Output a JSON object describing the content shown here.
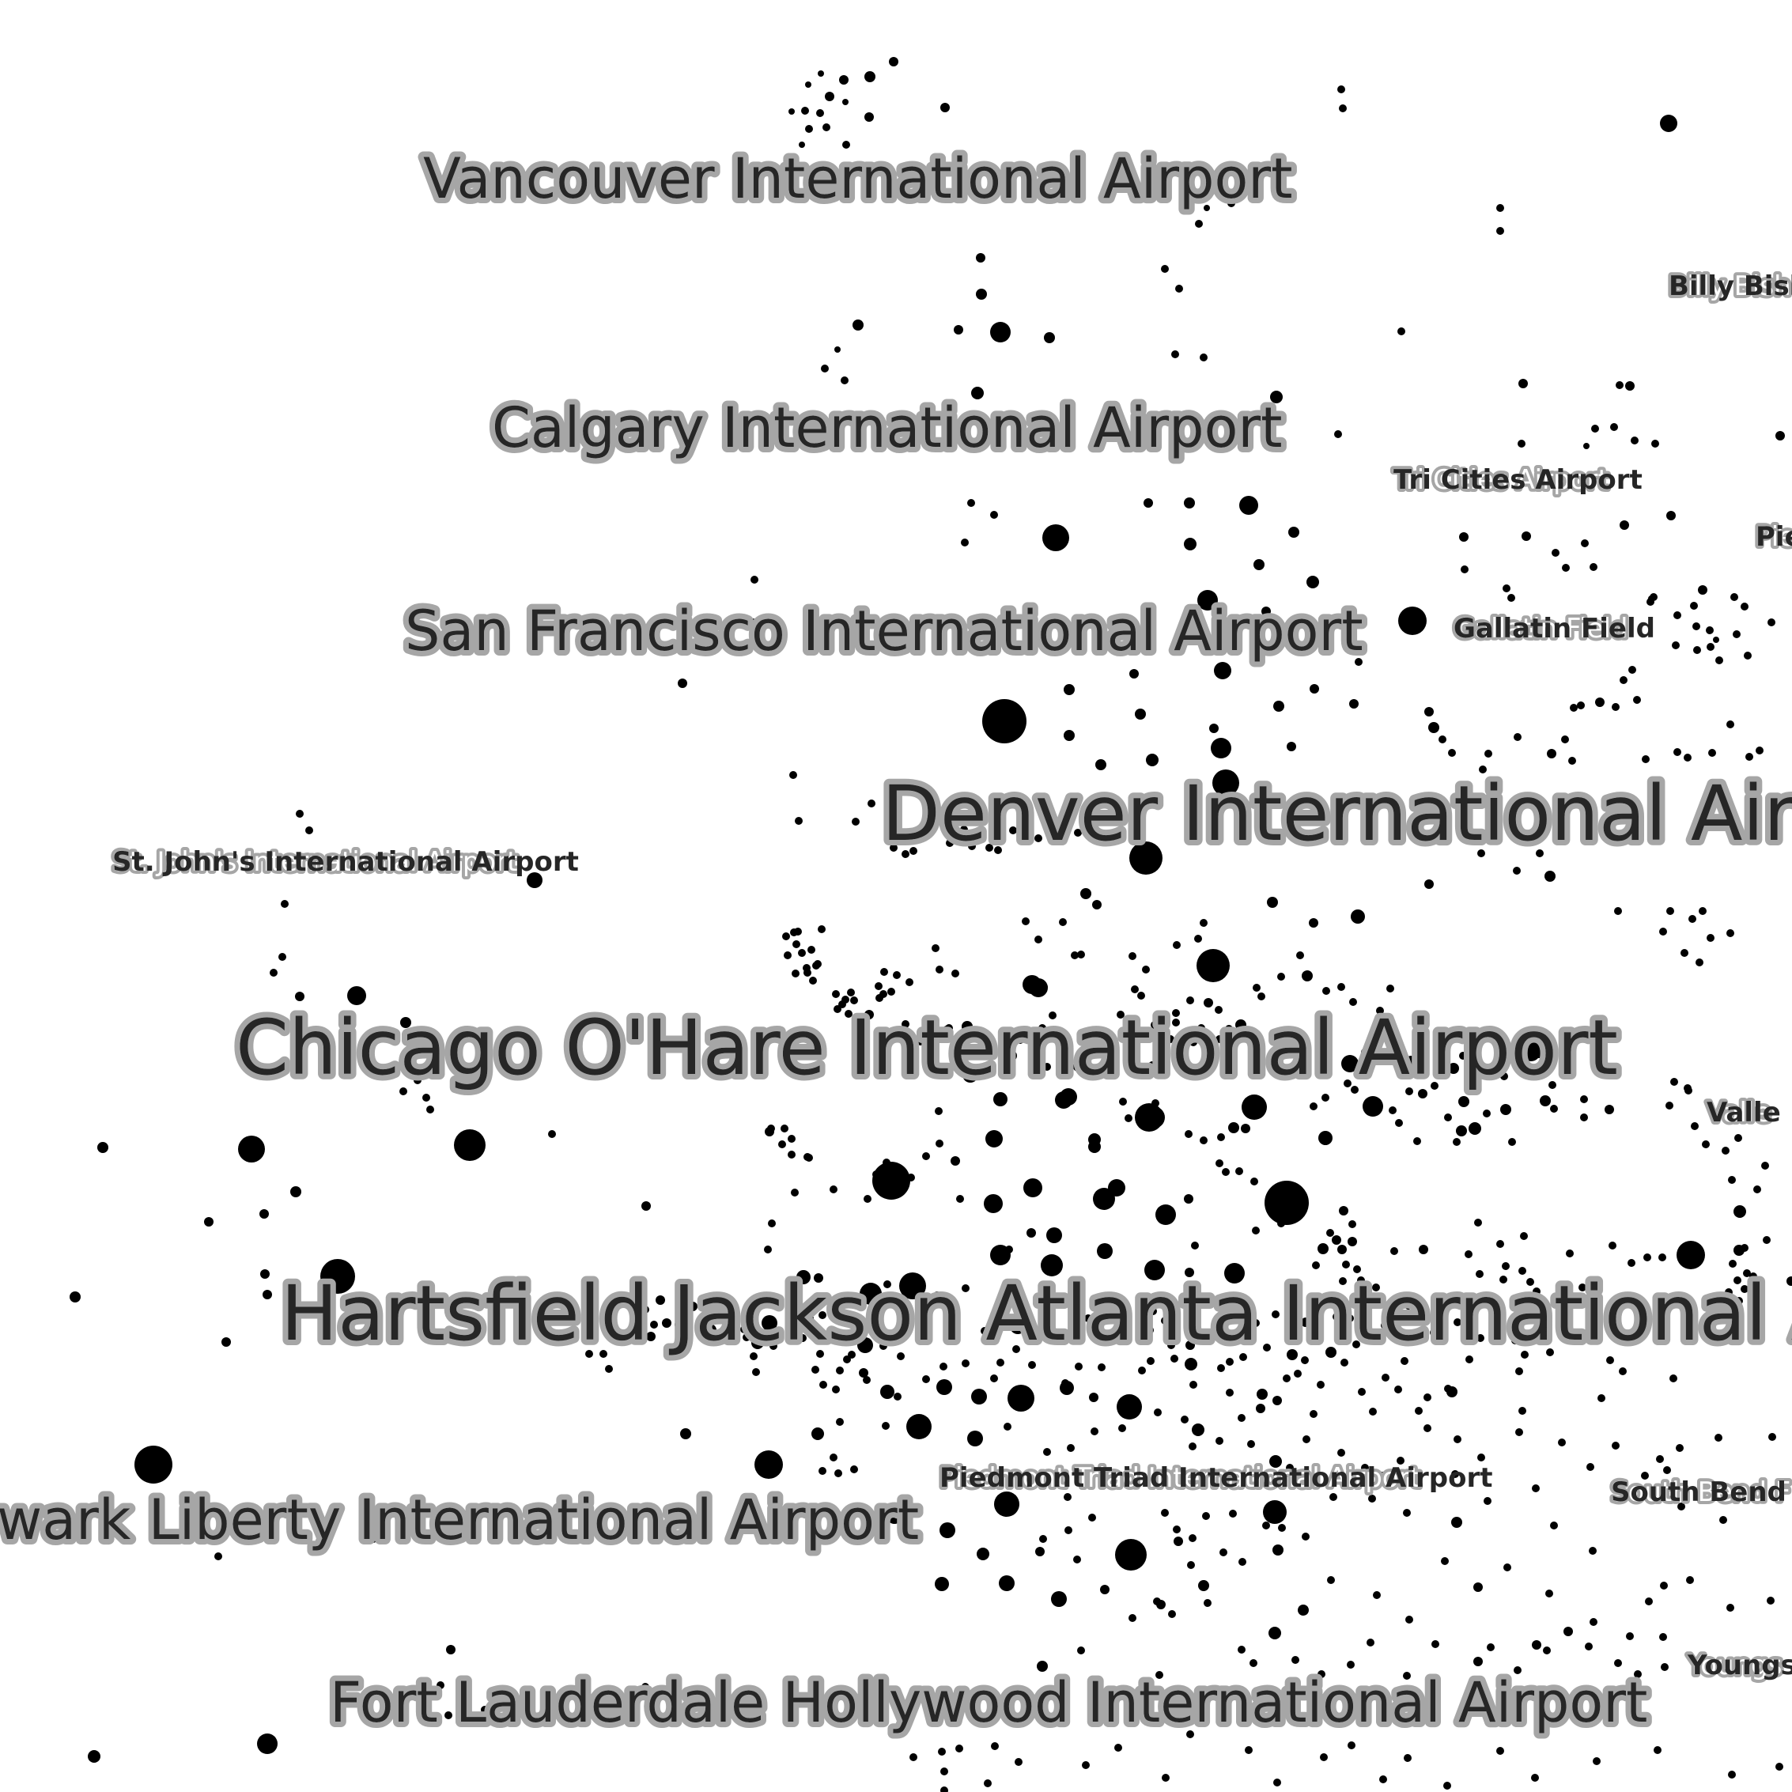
{
  "map": {
    "style": "dot-density airport label map",
    "colors": {
      "background": "#ffffff",
      "dot": "#000000",
      "label_fill": "#2a2a2a",
      "label_halo": "#a6a6a6"
    },
    "labels": [
      {
        "id": "yvr",
        "text": "Vancouver International Airport",
        "size": "large"
      },
      {
        "id": "yyc",
        "text": "Calgary International Airport",
        "size": "large"
      },
      {
        "id": "sfo",
        "text": "San Francisco International Airport",
        "size": "large"
      },
      {
        "id": "den",
        "text": "Denver International Airpo",
        "size": "xlarge"
      },
      {
        "id": "ord",
        "text": "Chicago O'Hare International Airport",
        "size": "xlarge"
      },
      {
        "id": "atl",
        "text": "Hartsfield Jackson Atlanta International Air",
        "size": "xlarge"
      },
      {
        "id": "ewr",
        "text": "wark Liberty International Airport",
        "size": "large"
      },
      {
        "id": "fll",
        "text": "Fort Lauderdale Hollywood International Airport",
        "size": "large"
      },
      {
        "id": "ytz",
        "text": "Billy Bish",
        "size": "small"
      },
      {
        "id": "tri",
        "text": "Tri Cities Airport",
        "size": "small"
      },
      {
        "id": "pie",
        "text": "Pie",
        "size": "small"
      },
      {
        "id": "bzn",
        "text": "Gallatin Field",
        "size": "small"
      },
      {
        "id": "yyt",
        "text": "St. John's International Airport",
        "size": "small"
      },
      {
        "id": "vly",
        "text": "Valle",
        "size": "small"
      },
      {
        "id": "gso",
        "text": "Piedmont Triad International Airport",
        "size": "small"
      },
      {
        "id": "sbn",
        "text": "South Bend F",
        "size": "small"
      },
      {
        "id": "yng",
        "text": "Youngs",
        "size": "small"
      }
    ]
  }
}
